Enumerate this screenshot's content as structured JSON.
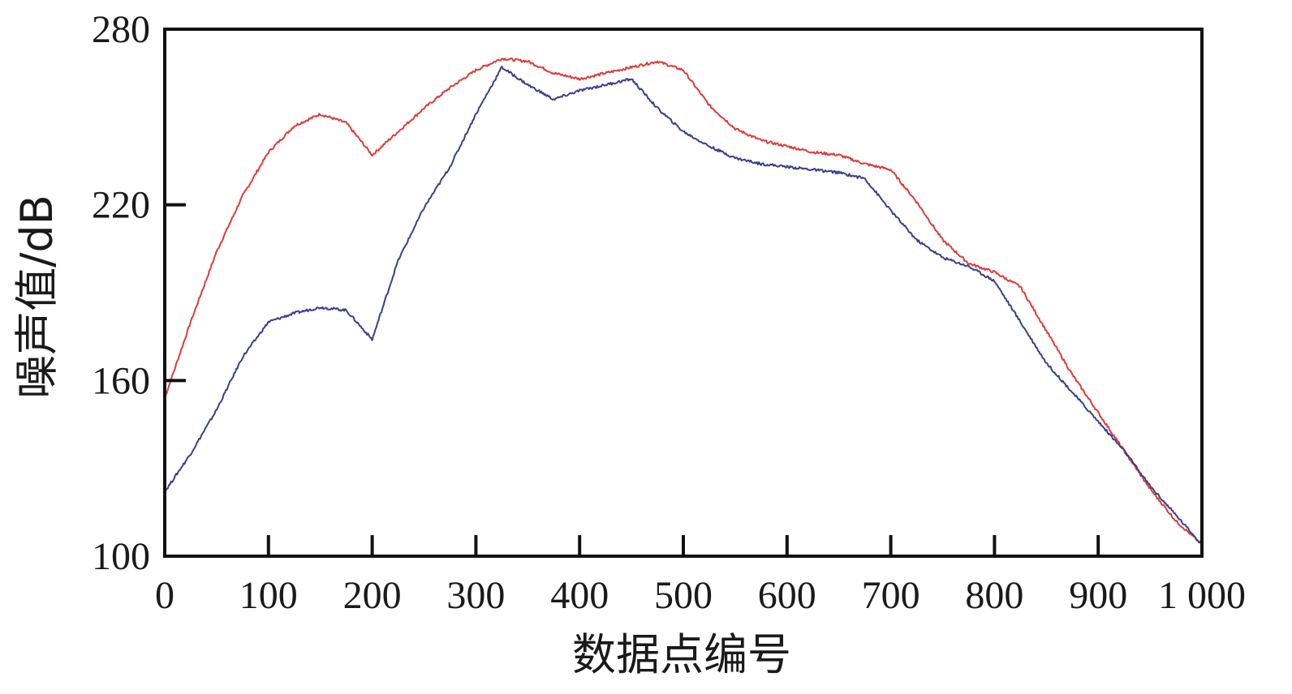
{
  "chart_data": {
    "type": "line",
    "title": "",
    "xlabel": "数据点编号",
    "ylabel": "噪声值/dB",
    "xlim": [
      0,
      1000
    ],
    "ylim": [
      100,
      280
    ],
    "x_ticks": [
      0,
      100,
      200,
      300,
      400,
      500,
      600,
      700,
      800,
      900,
      1000
    ],
    "x_tick_labels": [
      "0",
      "100",
      "200",
      "300",
      "400",
      "500",
      "600",
      "700",
      "800",
      "900",
      "1 000"
    ],
    "y_ticks": [
      100,
      160,
      220,
      280
    ],
    "y_tick_labels": [
      "100",
      "160",
      "220",
      "280"
    ],
    "grid": false,
    "legend": "none",
    "series": [
      {
        "color": "#e03a3a",
        "x": [
          0,
          25,
          50,
          75,
          100,
          125,
          150,
          175,
          200,
          225,
          250,
          275,
          300,
          325,
          350,
          375,
          400,
          425,
          450,
          475,
          500,
          525,
          550,
          575,
          600,
          625,
          650,
          675,
          700,
          725,
          750,
          775,
          800,
          825,
          850,
          875,
          900,
          925,
          950,
          975,
          1000
        ],
        "y": [
          154,
          180,
          204,
          223,
          238,
          247,
          251,
          248,
          237,
          245,
          253,
          260,
          266,
          270,
          269,
          265,
          263,
          265,
          267,
          269,
          266,
          254,
          246,
          242,
          240,
          238,
          237,
          234,
          232,
          221,
          208,
          200,
          197,
          192,
          177,
          162,
          149,
          136,
          123,
          112,
          104
        ]
      },
      {
        "color": "#3a3f8c",
        "x": [
          0,
          25,
          50,
          75,
          100,
          125,
          150,
          175,
          200,
          225,
          250,
          275,
          300,
          325,
          350,
          375,
          400,
          425,
          450,
          475,
          500,
          525,
          550,
          575,
          600,
          625,
          650,
          675,
          700,
          725,
          750,
          775,
          800,
          825,
          850,
          875,
          900,
          925,
          950,
          975,
          1000
        ],
        "y": [
          122,
          135,
          150,
          168,
          180,
          183,
          185,
          184,
          174,
          201,
          219,
          233,
          251,
          267,
          261,
          256,
          259,
          261,
          263,
          253,
          245,
          240,
          236,
          234,
          233,
          232,
          231,
          229,
          218,
          208,
          202,
          199,
          194,
          180,
          166,
          156,
          146,
          136,
          124,
          114,
          104
        ]
      }
    ]
  }
}
